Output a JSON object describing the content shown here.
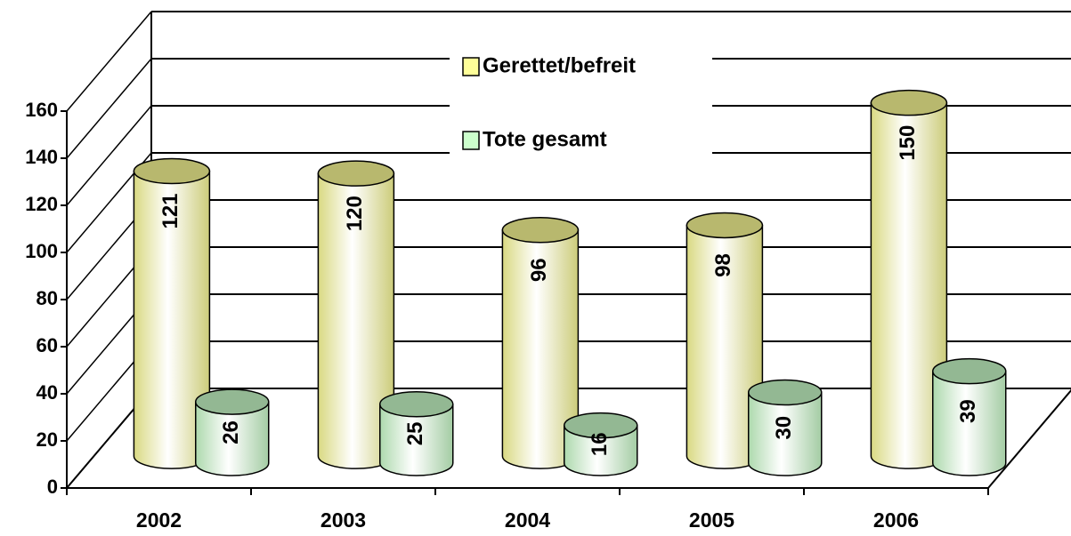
{
  "chart_data": {
    "type": "bar3d",
    "categories": [
      "2002",
      "2003",
      "2004",
      "2005",
      "2006"
    ],
    "series": [
      {
        "name": "Gerettet/befreit",
        "color": "#ffff99",
        "values": [
          121,
          120,
          96,
          98,
          150
        ]
      },
      {
        "name": "Tote gesamt",
        "color": "#ccffcc",
        "values": [
          26,
          25,
          16,
          30,
          39
        ]
      }
    ],
    "ylim": [
      0,
      160
    ],
    "yticks": [
      0,
      20,
      40,
      60,
      80,
      100,
      120,
      140,
      160
    ],
    "grid": true
  }
}
